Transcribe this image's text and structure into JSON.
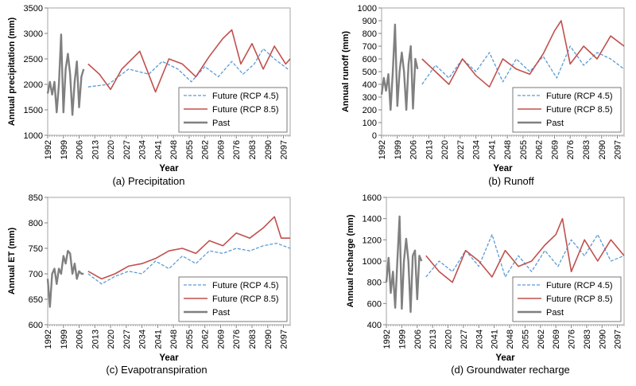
{
  "colors": {
    "rcp45": "#5b9bd5",
    "rcp85": "#c0504d",
    "past": "#808080",
    "axis": "#808080",
    "frame": "#a6a6a6"
  },
  "chart_data": [
    {
      "type": "line",
      "caption": "(a) Precipitation",
      "xlabel": "Year",
      "ylabel": "Annual precipitation (mm)",
      "xlim": [
        1992,
        2100
      ],
      "xticks": [
        "1992",
        "1999",
        "2006",
        "2013",
        "2020",
        "2027",
        "2034",
        "2041",
        "2048",
        "2055",
        "2062",
        "2069",
        "2076",
        "2083",
        "2090",
        "2097"
      ],
      "ylim": [
        1000,
        3500
      ],
      "yticks": [
        1000,
        1500,
        2000,
        2500,
        3000,
        3500
      ],
      "legend_position": "lower-right",
      "series": [
        {
          "name": "Future (RCP 4.5)",
          "style": "dashed",
          "x": [
            2010,
            2019,
            2028,
            2037,
            2043,
            2050,
            2056,
            2062,
            2068,
            2074,
            2079,
            2084,
            2088,
            2093,
            2099
          ],
          "y": [
            1950,
            2000,
            2300,
            2200,
            2450,
            2300,
            2050,
            2350,
            2150,
            2450,
            2200,
            2400,
            2700,
            2500,
            2300
          ]
        },
        {
          "name": "Future (RCP 8.5)",
          "style": "solid",
          "x": [
            2010,
            2015,
            2020,
            2025,
            2033,
            2040,
            2046,
            2052,
            2058,
            2064,
            2070,
            2074,
            2078,
            2083,
            2088,
            2093,
            2098,
            2100
          ],
          "y": [
            2400,
            2200,
            1900,
            2300,
            2650,
            1850,
            2500,
            2400,
            2150,
            2550,
            2900,
            3070,
            2400,
            2800,
            2300,
            2750,
            2400,
            2500
          ]
        },
        {
          "name": "Past",
          "style": "solid",
          "x": [
            1992,
            1993,
            1994,
            1995,
            1996,
            1997,
            1998,
            1999,
            2000,
            2001,
            2002,
            2003,
            2004,
            2005,
            2006,
            2007,
            2008
          ],
          "y": [
            1820,
            2050,
            1800,
            2050,
            1450,
            2000,
            2980,
            1450,
            2300,
            2600,
            2200,
            1400,
            2050,
            2450,
            1550,
            2150,
            2300
          ]
        }
      ]
    },
    {
      "type": "line",
      "caption": "(b) Runoff",
      "xlabel": "Year",
      "ylabel": "Annual runoff (mm)",
      "xlim": [
        1992,
        2100
      ],
      "xticks": [
        "1992",
        "1999",
        "2006",
        "2013",
        "2020",
        "2027",
        "2034",
        "2041",
        "2048",
        "2055",
        "2062",
        "2069",
        "2076",
        "2083",
        "2090",
        "2097"
      ],
      "ylim": [
        0,
        1000
      ],
      "yticks": [
        0,
        100,
        200,
        300,
        400,
        500,
        600,
        700,
        800,
        900,
        1000
      ],
      "legend_position": "lower-right",
      "series": [
        {
          "name": "Future (RCP 4.5)",
          "style": "dashed",
          "x": [
            2010,
            2016,
            2022,
            2028,
            2034,
            2040,
            2046,
            2052,
            2058,
            2064,
            2070,
            2076,
            2082,
            2088,
            2094,
            2100
          ],
          "y": [
            400,
            550,
            450,
            600,
            500,
            650,
            420,
            600,
            500,
            620,
            450,
            700,
            550,
            650,
            600,
            520
          ]
        },
        {
          "name": "Future (RCP 8.5)",
          "style": "solid",
          "x": [
            2010,
            2016,
            2022,
            2028,
            2034,
            2040,
            2046,
            2052,
            2058,
            2064,
            2069,
            2072,
            2076,
            2082,
            2088,
            2094,
            2100
          ],
          "y": [
            600,
            500,
            400,
            600,
            470,
            380,
            600,
            520,
            480,
            640,
            820,
            900,
            560,
            700,
            600,
            780,
            700
          ]
        },
        {
          "name": "Past",
          "style": "solid",
          "x": [
            1992,
            1993,
            1994,
            1995,
            1996,
            1997,
            1998,
            1999,
            2000,
            2001,
            2002,
            2003,
            2004,
            2005,
            2006,
            2007,
            2008
          ],
          "y": [
            320,
            450,
            350,
            480,
            200,
            500,
            870,
            230,
            500,
            650,
            500,
            200,
            560,
            700,
            210,
            600,
            520
          ]
        }
      ]
    },
    {
      "type": "line",
      "caption": "(c) Evapotranspiration",
      "xlabel": "Year",
      "ylabel": "Annual ET (mm)",
      "xlim": [
        1992,
        2100
      ],
      "xticks": [
        "1992",
        "1999",
        "2006",
        "2013",
        "2020",
        "2027",
        "2034",
        "2041",
        "2048",
        "2055",
        "2062",
        "2069",
        "2076",
        "2083",
        "2090",
        "2097"
      ],
      "ylim": [
        600,
        850
      ],
      "yticks": [
        600,
        650,
        700,
        750,
        800,
        850
      ],
      "legend_position": "lower-right",
      "series": [
        {
          "name": "Future (RCP 4.5)",
          "style": "dashed",
          "x": [
            2010,
            2016,
            2022,
            2028,
            2034,
            2040,
            2046,
            2052,
            2058,
            2064,
            2070,
            2076,
            2082,
            2088,
            2094,
            2100
          ],
          "y": [
            700,
            680,
            695,
            705,
            700,
            725,
            710,
            735,
            720,
            745,
            740,
            750,
            745,
            755,
            760,
            750
          ]
        },
        {
          "name": "Future (RCP 8.5)",
          "style": "solid",
          "x": [
            2010,
            2016,
            2022,
            2028,
            2034,
            2040,
            2046,
            2052,
            2058,
            2064,
            2070,
            2076,
            2082,
            2088,
            2093,
            2096,
            2100
          ],
          "y": [
            705,
            690,
            700,
            715,
            720,
            730,
            745,
            750,
            740,
            765,
            755,
            780,
            770,
            790,
            812,
            770,
            770
          ]
        },
        {
          "name": "Past",
          "style": "solid",
          "x": [
            1992,
            1993,
            1994,
            1995,
            1996,
            1997,
            1998,
            1999,
            2000,
            2001,
            2002,
            2003,
            2004,
            2005,
            2006,
            2007,
            2008
          ],
          "y": [
            690,
            635,
            700,
            710,
            680,
            710,
            700,
            735,
            720,
            745,
            740,
            700,
            720,
            690,
            705,
            700,
            700
          ]
        }
      ]
    },
    {
      "type": "line",
      "caption": "(d) Groundwater recharge",
      "xlabel": "Year",
      "ylabel": "Annual recharge (mm)",
      "xlim": [
        1992,
        2100
      ],
      "xticks": [
        "1992",
        "1999",
        "2006",
        "2013",
        "2020",
        "2027",
        "2034",
        "2041",
        "2048",
        "2055",
        "2062",
        "2069",
        "2076",
        "2083",
        "2090",
        "2097"
      ],
      "ylim": [
        400,
        1600
      ],
      "yticks": [
        400,
        600,
        800,
        1000,
        1200,
        1400,
        1600
      ],
      "legend_position": "lower-right",
      "series": [
        {
          "name": "Future (RCP 4.5)",
          "style": "dashed",
          "x": [
            2010,
            2016,
            2022,
            2028,
            2034,
            2040,
            2046,
            2052,
            2058,
            2064,
            2070,
            2076,
            2082,
            2088,
            2094,
            2100
          ],
          "y": [
            850,
            1000,
            900,
            1100,
            950,
            1250,
            850,
            1050,
            900,
            1100,
            950,
            1200,
            1050,
            1250,
            1000,
            1050
          ]
        },
        {
          "name": "Future (RCP 8.5)",
          "style": "solid",
          "x": [
            2010,
            2016,
            2022,
            2028,
            2034,
            2040,
            2046,
            2052,
            2058,
            2064,
            2069,
            2072,
            2076,
            2082,
            2088,
            2094,
            2100
          ],
          "y": [
            1050,
            900,
            800,
            1100,
            1000,
            850,
            1100,
            950,
            1000,
            1150,
            1250,
            1400,
            900,
            1200,
            1000,
            1200,
            1050
          ]
        },
        {
          "name": "Past",
          "style": "solid",
          "x": [
            1992,
            1993,
            1994,
            1995,
            1996,
            1997,
            1998,
            1999,
            2000,
            2001,
            2002,
            2003,
            2004,
            2005,
            2006,
            2007,
            2008
          ],
          "y": [
            800,
            1030,
            700,
            900,
            560,
            1000,
            1420,
            550,
            1000,
            1210,
            1000,
            520,
            1050,
            1100,
            640,
            1050,
            1000
          ]
        }
      ]
    }
  ]
}
